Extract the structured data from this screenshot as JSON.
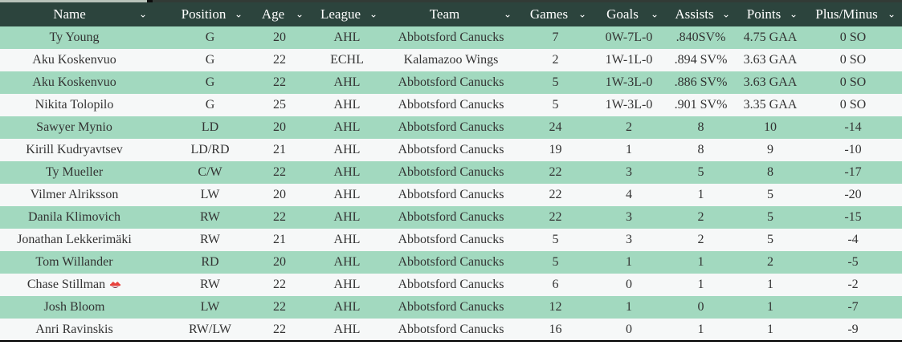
{
  "ui": {
    "sort_icon": "⌄",
    "colors": {
      "header_bg": "#2c443d",
      "header_text": "#ffffff",
      "row_green": "#a2d9bf",
      "row_light": "#f6f8f8",
      "cell_text": "#333333",
      "border_dark": "#000000",
      "injury_red": "#e8413c"
    }
  },
  "table": {
    "columns": [
      {
        "key": "name",
        "label": "Name"
      },
      {
        "key": "position",
        "label": "Position"
      },
      {
        "key": "age",
        "label": "Age"
      },
      {
        "key": "league",
        "label": "League"
      },
      {
        "key": "team",
        "label": "Team"
      },
      {
        "key": "games",
        "label": "Games"
      },
      {
        "key": "goals",
        "label": "Goals"
      },
      {
        "key": "assists",
        "label": "Assists"
      },
      {
        "key": "points",
        "label": "Points"
      },
      {
        "key": "plus_minus",
        "label": "Plus/Minus"
      }
    ],
    "rows": [
      {
        "name": "Ty Young",
        "position": "G",
        "age": "20",
        "league": "AHL",
        "team": "Abbotsford Canucks",
        "games": "7",
        "goals": "0W-7L-0",
        "assists": ".840SV%",
        "points": "4.75 GAA",
        "plus_minus": "0 SO"
      },
      {
        "name": "Aku Koskenvuo",
        "position": "G",
        "age": "22",
        "league": "ECHL",
        "team": "Kalamazoo Wings",
        "games": "2",
        "goals": "1W-1L-0",
        "assists": ".894 SV%",
        "points": "3.63 GAA",
        "plus_minus": "0 SO"
      },
      {
        "name": "Aku Koskenvuo",
        "position": "G",
        "age": "22",
        "league": "AHL",
        "team": "Abbotsford Canucks",
        "games": "5",
        "goals": "1W-3L-0",
        "assists": ".886 SV%",
        "points": "3.63 GAA",
        "plus_minus": "0 SO"
      },
      {
        "name": "Nikita Tolopilo",
        "position": "G",
        "age": "25",
        "league": "AHL",
        "team": "Abbotsford Canucks",
        "games": "5",
        "goals": "1W-3L-0",
        "assists": ".901 SV%",
        "points": "3.35 GAA",
        "plus_minus": "0 SO"
      },
      {
        "name": "Sawyer Mynio",
        "position": "LD",
        "age": "20",
        "league": "AHL",
        "team": "Abbotsford Canucks",
        "games": "24",
        "goals": "2",
        "assists": "8",
        "points": "10",
        "plus_minus": "-14"
      },
      {
        "name": "Kirill Kudryavtsev",
        "position": "LD/RD",
        "age": "21",
        "league": "AHL",
        "team": "Abbotsford Canucks",
        "games": "19",
        "goals": "1",
        "assists": "8",
        "points": "9",
        "plus_minus": "-10"
      },
      {
        "name": "Ty Mueller",
        "position": "C/W",
        "age": "22",
        "league": "AHL",
        "team": "Abbotsford Canucks",
        "games": "22",
        "goals": "3",
        "assists": "5",
        "points": "8",
        "plus_minus": "-17"
      },
      {
        "name": "Vilmer Alriksson",
        "position": "LW",
        "age": "20",
        "league": "AHL",
        "team": "Abbotsford Canucks",
        "games": "22",
        "goals": "4",
        "assists": "1",
        "points": "5",
        "plus_minus": "-20"
      },
      {
        "name": "Danila Klimovich",
        "position": "RW",
        "age": "22",
        "league": "AHL",
        "team": "Abbotsford Canucks",
        "games": "22",
        "goals": "3",
        "assists": "2",
        "points": "5",
        "plus_minus": "-15"
      },
      {
        "name": "Jonathan Lekkerimäki",
        "position": "RW",
        "age": "21",
        "league": "AHL",
        "team": "Abbotsford Canucks",
        "games": "5",
        "goals": "3",
        "assists": "2",
        "points": "5",
        "plus_minus": "-4"
      },
      {
        "name": "Tom Willander",
        "position": "RD",
        "age": "20",
        "league": "AHL",
        "team": "Abbotsford Canucks",
        "games": "5",
        "goals": "1",
        "assists": "1",
        "points": "2",
        "plus_minus": "-5"
      },
      {
        "name": "Chase Stillman",
        "badge": "rescue-helmet",
        "position": "RW",
        "age": "22",
        "league": "AHL",
        "team": "Abbotsford Canucks",
        "games": "6",
        "goals": "0",
        "assists": "1",
        "points": "1",
        "plus_minus": "-2"
      },
      {
        "name": "Josh Bloom",
        "position": "LW",
        "age": "22",
        "league": "AHL",
        "team": "Abbotsford Canucks",
        "games": "12",
        "goals": "1",
        "assists": "0",
        "points": "1",
        "plus_minus": "-7"
      },
      {
        "name": "Anri Ravinskis",
        "position": "RW/LW",
        "age": "22",
        "league": "AHL",
        "team": "Abbotsford Canucks",
        "games": "16",
        "goals": "0",
        "assists": "1",
        "points": "1",
        "plus_minus": "-9"
      }
    ]
  }
}
